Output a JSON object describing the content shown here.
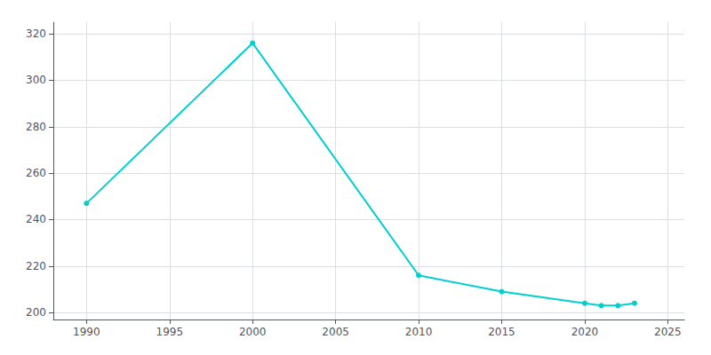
{
  "chart_data": {
    "type": "line",
    "x": [
      1990,
      2000,
      2010,
      2015,
      2020,
      2021,
      2022,
      2023
    ],
    "values": [
      247,
      316,
      216,
      209,
      204,
      203,
      203,
      204
    ],
    "color": "#00CED1",
    "marker": "circle",
    "xlim": [
      1988,
      2026
    ],
    "xticks": [
      1990,
      1995,
      2000,
      2005,
      2010,
      2015,
      2020,
      2025
    ],
    "ylim": [
      197,
      325
    ],
    "yticks": [
      200,
      220,
      240,
      260,
      280,
      300,
      320
    ],
    "grid": true
  }
}
